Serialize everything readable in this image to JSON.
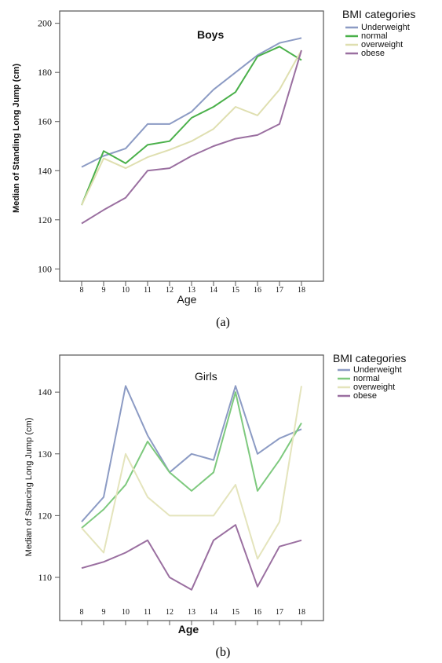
{
  "chart_data": [
    {
      "type": "line",
      "title": "Boys",
      "xlabel": "Age",
      "ylabel": "Median of Standing Long Jump (cm)",
      "panel_label": "(a)",
      "legend_title": "BMI categories",
      "legend_position": "top-right outside",
      "x": [
        8,
        9,
        10,
        11,
        12,
        13,
        14,
        15,
        16,
        17,
        18
      ],
      "xlim": [
        7,
        19
      ],
      "ylim": [
        95,
        205
      ],
      "yticks": [
        100,
        120,
        140,
        160,
        180,
        200
      ],
      "grid": false,
      "series": [
        {
          "name": "Underweight",
          "color": "#8c9bc4",
          "values": [
            141.5,
            146,
            149,
            159,
            159,
            164,
            173,
            180,
            187,
            192,
            194
          ]
        },
        {
          "name": "normal",
          "color": "#4ab04a",
          "values": [
            126,
            148,
            143,
            150.5,
            152,
            161.5,
            166,
            172,
            186.5,
            190.5,
            185
          ]
        },
        {
          "name": "overweight",
          "color": "#dfdfb0",
          "values": [
            126,
            145,
            141,
            145.5,
            148.5,
            152,
            157,
            166,
            162.5,
            173,
            189
          ]
        },
        {
          "name": "obese",
          "color": "#9a6fa0",
          "values": [
            118.5,
            124,
            129,
            140,
            141,
            146,
            150,
            153,
            154.5,
            159,
            189
          ]
        }
      ]
    },
    {
      "type": "line",
      "title": "Girls",
      "xlabel": "Age",
      "ylabel": "Median of Stancing Long Jump (cm)",
      "panel_label": "(b)",
      "legend_title": "BMI categories",
      "legend_position": "top-right outside",
      "x": [
        8,
        9,
        10,
        11,
        12,
        13,
        14,
        15,
        16,
        17,
        18
      ],
      "xlim": [
        7,
        19
      ],
      "ylim": [
        103,
        146
      ],
      "yticks": [
        110,
        120,
        130,
        140
      ],
      "grid": false,
      "series": [
        {
          "name": "Underweight",
          "color": "#8c9bc4",
          "values": [
            119,
            123,
            141,
            133,
            127,
            130,
            129,
            141,
            130,
            132.5,
            134
          ]
        },
        {
          "name": "normal",
          "color": "#7ec97e",
          "values": [
            118,
            121,
            125,
            132,
            127,
            124,
            127,
            140,
            124,
            129,
            135
          ]
        },
        {
          "name": "overweight",
          "color": "#e4e4bc",
          "values": [
            118,
            114,
            130,
            123,
            120,
            120,
            120,
            125,
            113,
            119,
            141
          ]
        },
        {
          "name": "obese",
          "color": "#9a6fa0",
          "values": [
            111.5,
            112.5,
            114,
            116,
            110,
            108,
            116,
            118.5,
            108.5,
            115,
            116
          ]
        }
      ]
    }
  ]
}
